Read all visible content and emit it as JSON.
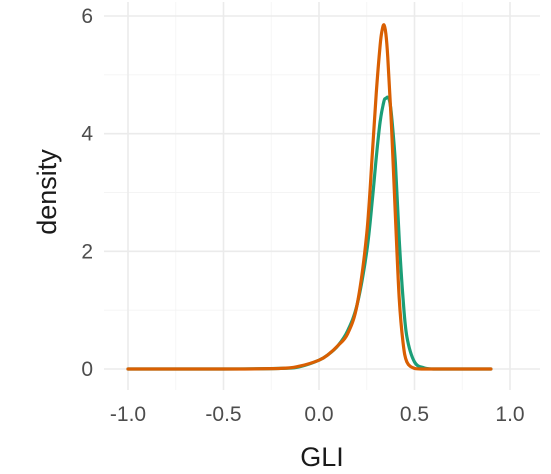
{
  "chart_data": {
    "type": "line",
    "title": "",
    "xlabel": "GLI",
    "ylabel": "density",
    "xlim": [
      -1.0,
      1.0
    ],
    "ylim": [
      0,
      6
    ],
    "x_ticks": [
      -1.0,
      -0.5,
      0.0,
      0.5,
      1.0
    ],
    "x_tick_labels": [
      "-1.0",
      "-0.5",
      "0.0",
      "0.5",
      "1.0"
    ],
    "y_ticks": [
      0,
      2,
      4,
      6
    ],
    "y_tick_labels": [
      "0",
      "2",
      "4",
      "6"
    ],
    "grid": true,
    "legend": "none",
    "series": [
      {
        "color": "#1b9e77",
        "x": [
          -1.0,
          -0.5,
          -0.2,
          -0.1,
          0.0,
          0.05,
          0.1,
          0.15,
          0.2,
          0.25,
          0.28,
          0.3,
          0.32,
          0.34,
          0.35,
          0.36,
          0.37,
          0.38,
          0.4,
          0.42,
          0.44,
          0.46,
          0.5,
          0.55,
          0.6,
          0.7,
          0.9
        ],
        "y": [
          0,
          0,
          0.01,
          0.04,
          0.15,
          0.25,
          0.4,
          0.65,
          1.1,
          2.0,
          2.9,
          3.6,
          4.2,
          4.55,
          4.6,
          4.62,
          4.55,
          4.3,
          3.5,
          2.2,
          1.2,
          0.55,
          0.12,
          0.02,
          0,
          0,
          0
        ]
      },
      {
        "color": "#d95f02",
        "x": [
          -1.0,
          -0.5,
          -0.2,
          -0.1,
          0.0,
          0.05,
          0.1,
          0.15,
          0.2,
          0.25,
          0.28,
          0.3,
          0.32,
          0.33,
          0.34,
          0.35,
          0.36,
          0.38,
          0.4,
          0.42,
          0.44,
          0.46,
          0.5,
          0.55,
          0.7,
          0.9
        ],
        "y": [
          0,
          0,
          0.01,
          0.05,
          0.15,
          0.25,
          0.4,
          0.6,
          1.1,
          2.3,
          3.7,
          4.7,
          5.5,
          5.75,
          5.85,
          5.7,
          5.3,
          4.1,
          2.6,
          1.2,
          0.45,
          0.12,
          0.01,
          0,
          0,
          0
        ]
      }
    ]
  }
}
